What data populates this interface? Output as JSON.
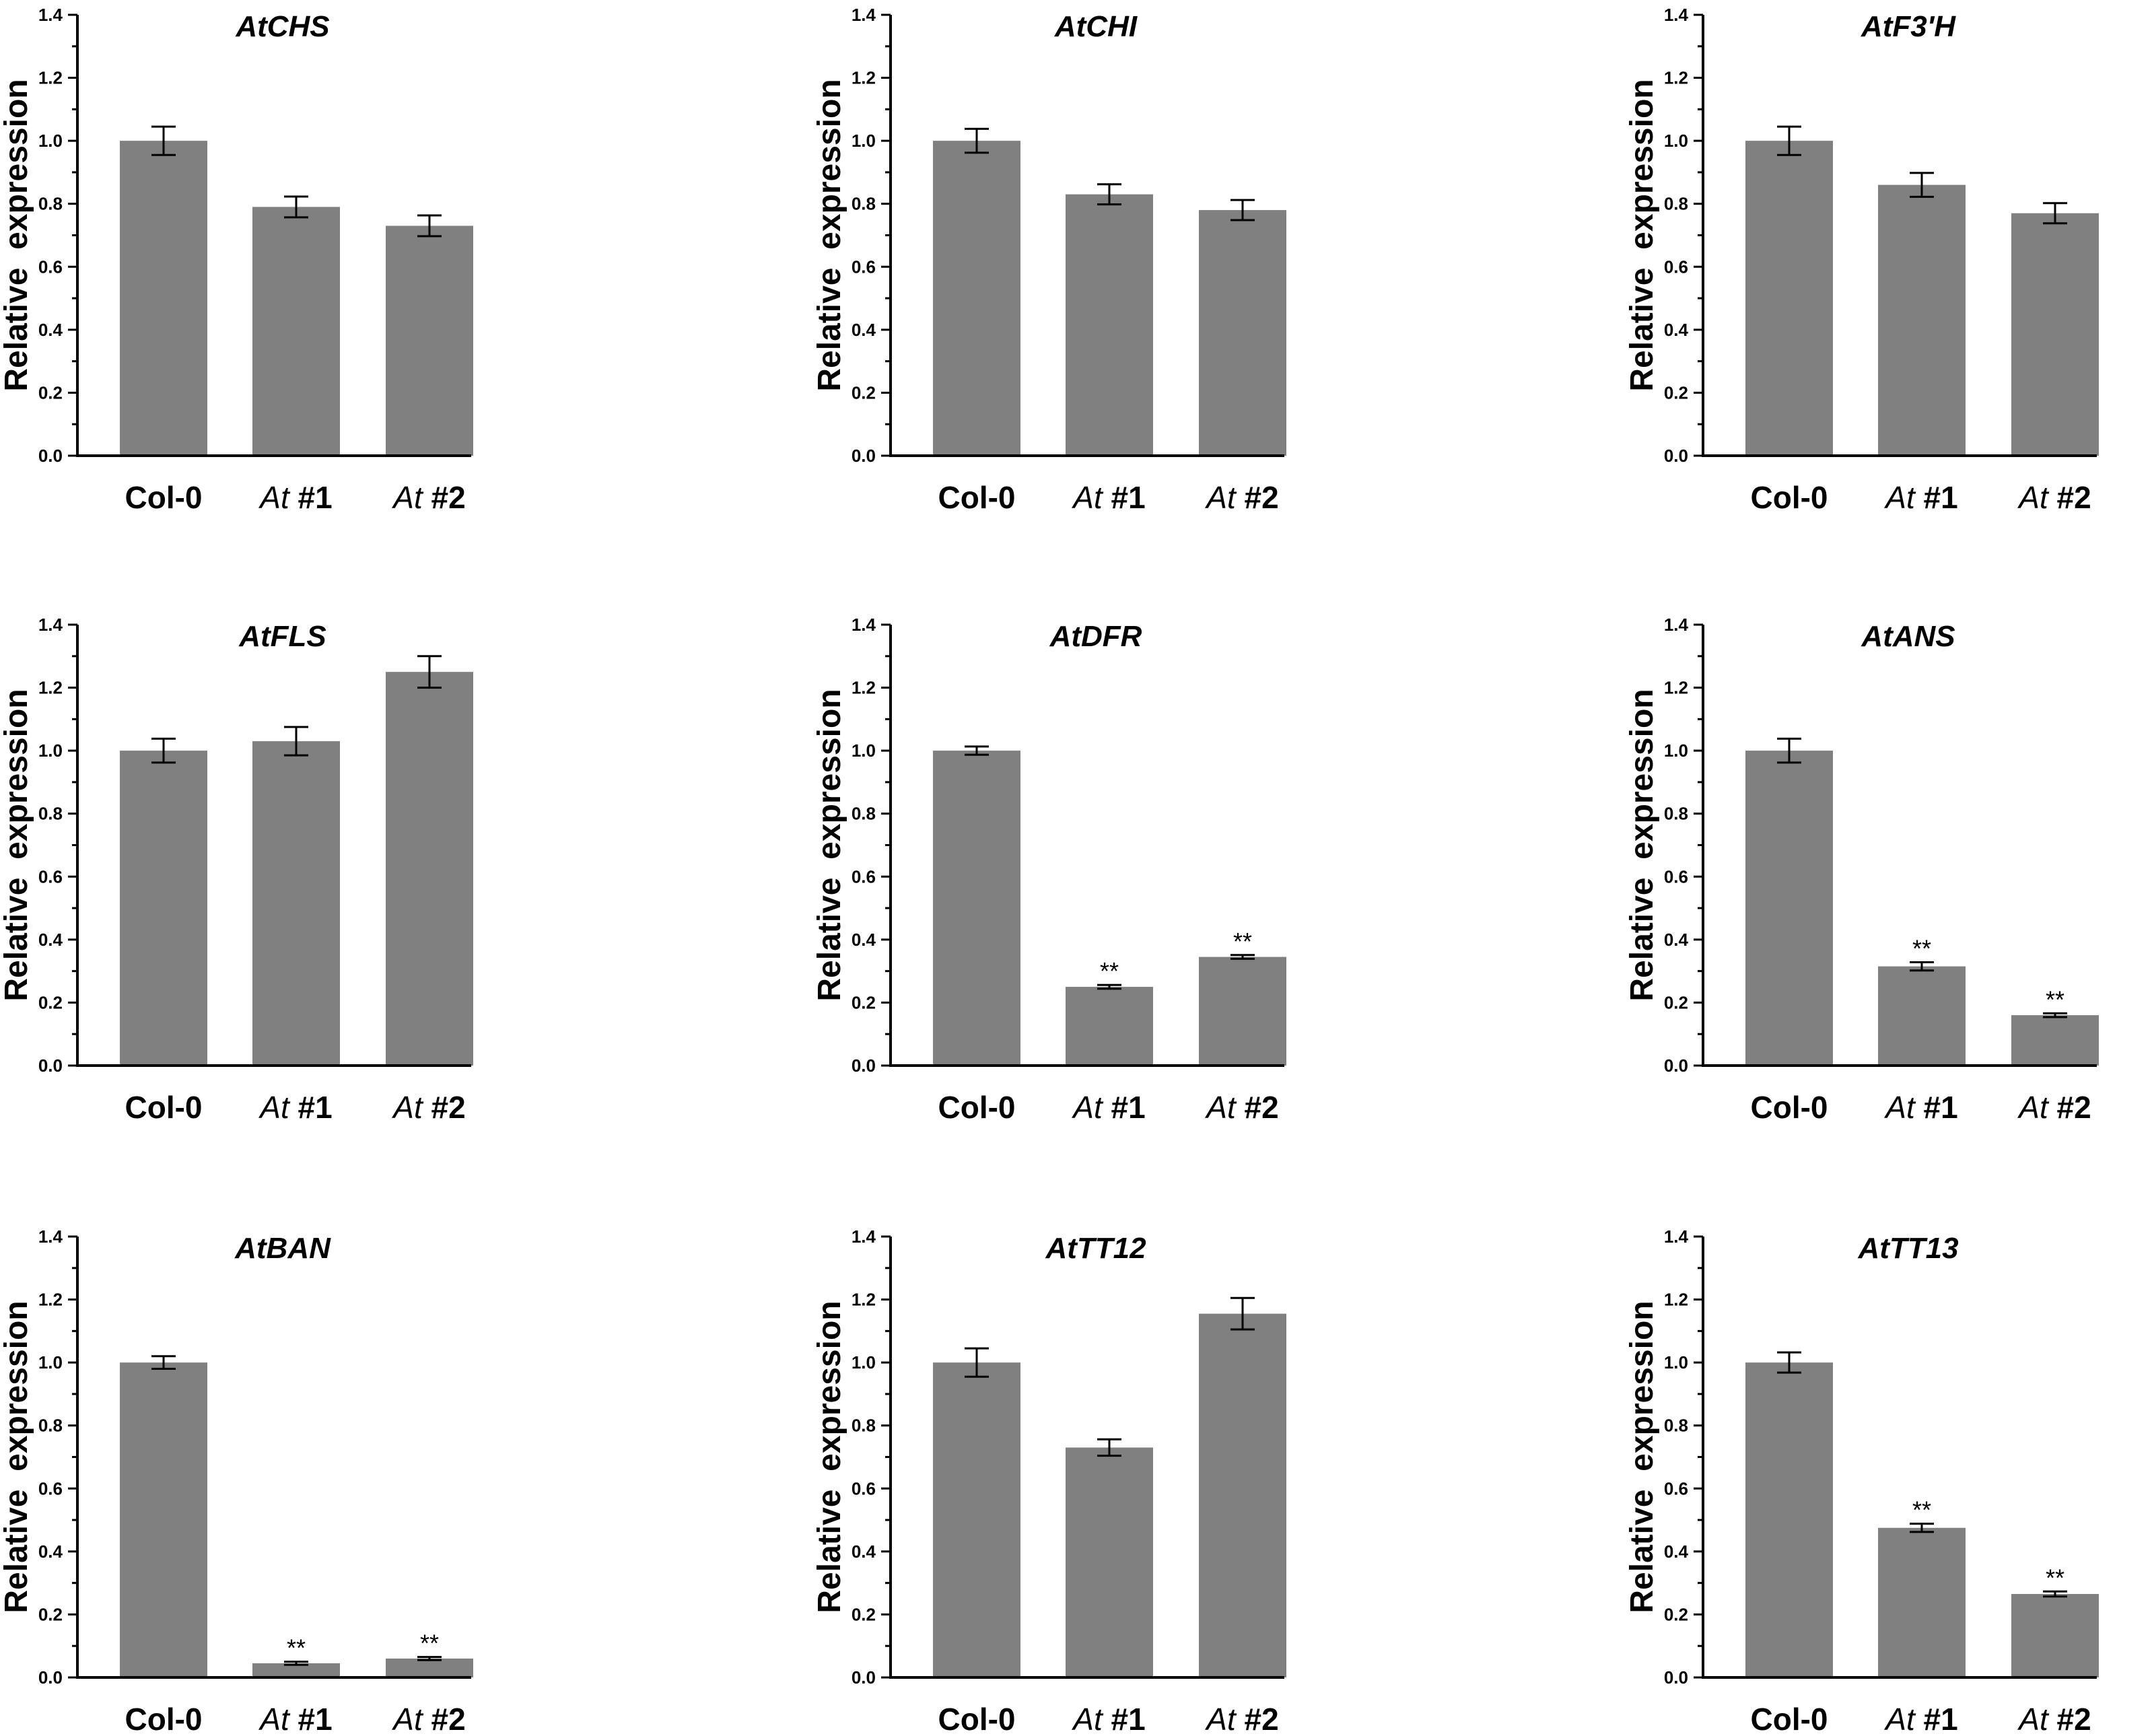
{
  "chart_data": [
    {
      "type": "bar",
      "title": "AtCHS",
      "ylabel": "Relative  expression",
      "categories": [
        "Col-0",
        "At #1",
        "At #2"
      ],
      "values": [
        1.0,
        0.79,
        0.73
      ],
      "errors": [
        0.045,
        0.033,
        0.033
      ],
      "significance": [
        "",
        "",
        ""
      ],
      "ylim": [
        0,
        1.4
      ],
      "yticks": [
        "0.0",
        "0.2",
        "0.4",
        "0.6",
        "0.8",
        "1.0",
        "1.2",
        "1.4"
      ]
    },
    {
      "type": "bar",
      "title": "AtCHI",
      "ylabel": "Relative  expression",
      "categories": [
        "Col-0",
        "At #1",
        "At #2"
      ],
      "values": [
        1.0,
        0.83,
        0.78
      ],
      "errors": [
        0.038,
        0.032,
        0.032
      ],
      "significance": [
        "",
        "",
        ""
      ],
      "ylim": [
        0,
        1.4
      ],
      "yticks": [
        "0.0",
        "0.2",
        "0.4",
        "0.6",
        "0.8",
        "1.0",
        "1.2",
        "1.4"
      ]
    },
    {
      "type": "bar",
      "title": "AtF3'H",
      "ylabel": "Relative  expression",
      "categories": [
        "Col-0",
        "At #1",
        "At #2"
      ],
      "values": [
        1.0,
        0.86,
        0.77
      ],
      "errors": [
        0.045,
        0.038,
        0.032
      ],
      "significance": [
        "",
        "",
        ""
      ],
      "ylim": [
        0,
        1.4
      ],
      "yticks": [
        "0.0",
        "0.2",
        "0.4",
        "0.6",
        "0.8",
        "1.0",
        "1.2",
        "1.4"
      ]
    },
    {
      "type": "bar",
      "title": "AtFLS",
      "ylabel": "Relative  expression",
      "categories": [
        "Col-0",
        "At #1",
        "At #2"
      ],
      "values": [
        1.0,
        1.03,
        1.25
      ],
      "errors": [
        0.038,
        0.045,
        0.05
      ],
      "significance": [
        "",
        "",
        ""
      ],
      "ylim": [
        0,
        1.4
      ],
      "yticks": [
        "0.0",
        "0.2",
        "0.4",
        "0.6",
        "0.8",
        "1.0",
        "1.2",
        "1.4"
      ]
    },
    {
      "type": "bar",
      "title": "AtDFR",
      "ylabel": "Relative  expression",
      "categories": [
        "Col-0",
        "At #1",
        "At #2"
      ],
      "values": [
        1.0,
        0.25,
        0.345
      ],
      "errors": [
        0.013,
        0.006,
        0.006
      ],
      "significance": [
        "",
        "**",
        "**"
      ],
      "ylim": [
        0,
        1.4
      ],
      "yticks": [
        "0.0",
        "0.2",
        "0.4",
        "0.6",
        "0.8",
        "1.0",
        "1.2",
        "1.4"
      ]
    },
    {
      "type": "bar",
      "title": "AtANS",
      "ylabel": "Relative  expression",
      "categories": [
        "Col-0",
        "At #1",
        "At #2"
      ],
      "values": [
        1.0,
        0.315,
        0.16
      ],
      "errors": [
        0.038,
        0.013,
        0.006
      ],
      "significance": [
        "",
        "**",
        "**"
      ],
      "ylim": [
        0,
        1.4
      ],
      "yticks": [
        "0.0",
        "0.2",
        "0.4",
        "0.6",
        "0.8",
        "1.0",
        "1.2",
        "1.4"
      ]
    },
    {
      "type": "bar",
      "title": "AtBAN",
      "ylabel": "Relative  expression",
      "categories": [
        "Col-0",
        "At #1",
        "At #2"
      ],
      "values": [
        1.0,
        0.045,
        0.06
      ],
      "errors": [
        0.02,
        0.005,
        0.005
      ],
      "significance": [
        "",
        "**",
        "**"
      ],
      "ylim": [
        0,
        1.4
      ],
      "yticks": [
        "0.0",
        "0.2",
        "0.4",
        "0.6",
        "0.8",
        "1.0",
        "1.2",
        "1.4"
      ]
    },
    {
      "type": "bar",
      "title": "AtTT12",
      "ylabel": "Relative  expression",
      "categories": [
        "Col-0",
        "At #1",
        "At #2"
      ],
      "values": [
        1.0,
        0.73,
        1.155
      ],
      "errors": [
        0.045,
        0.026,
        0.05
      ],
      "significance": [
        "",
        "",
        ""
      ],
      "ylim": [
        0,
        1.4
      ],
      "yticks": [
        "0.0",
        "0.2",
        "0.4",
        "0.6",
        "0.8",
        "1.0",
        "1.2",
        "1.4"
      ]
    },
    {
      "type": "bar",
      "title": "AtTT13",
      "ylabel": "Relative  expression",
      "categories": [
        "Col-0",
        "At #1",
        "At #2"
      ],
      "values": [
        1.0,
        0.475,
        0.265
      ],
      "errors": [
        0.032,
        0.013,
        0.008
      ],
      "significance": [
        "",
        "**",
        "**"
      ],
      "ylim": [
        0,
        1.4
      ],
      "yticks": [
        "0.0",
        "0.2",
        "0.4",
        "0.6",
        "0.8",
        "1.0",
        "1.2",
        "1.4"
      ]
    }
  ],
  "colors": {
    "bar": "#808080",
    "axis": "#000000",
    "text": "#000000"
  }
}
